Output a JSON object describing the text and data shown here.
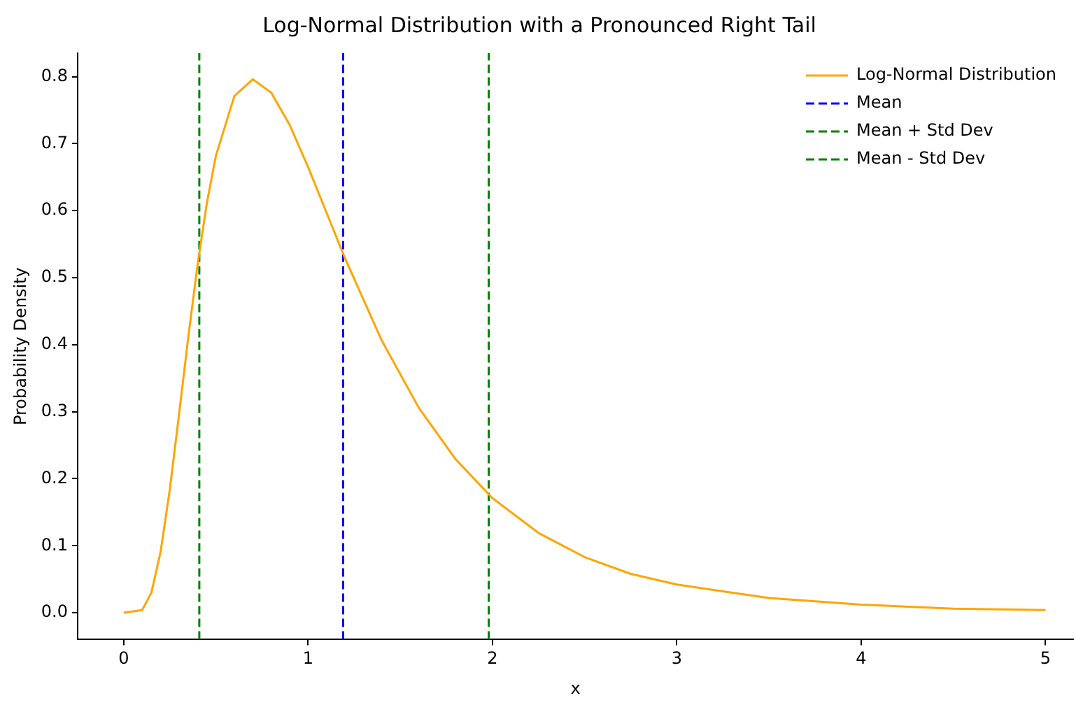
{
  "chart_data": {
    "type": "line",
    "title": "Log-Normal Distribution with a Pronounced Right Tail",
    "xlabel": "x",
    "ylabel": "Probability Density",
    "x": [
      0,
      0.1,
      0.15,
      0.2,
      0.25,
      0.3,
      0.35,
      0.4,
      0.45,
      0.5,
      0.6,
      0.7,
      0.8,
      0.9,
      1.0,
      1.1,
      1.2,
      1.4,
      1.6,
      1.8,
      2.0,
      2.25,
      2.5,
      2.75,
      3.0,
      3.5,
      4.0,
      4.5,
      5.0
    ],
    "series": [
      {
        "name": "Log-Normal Distribution",
        "color": "#ffa500",
        "line_style": "solid",
        "values": [
          0,
          0.004,
          0.03,
          0.091,
          0.184,
          0.296,
          0.411,
          0.518,
          0.61,
          0.682,
          0.771,
          0.796,
          0.776,
          0.728,
          0.665,
          0.597,
          0.529,
          0.406,
          0.306,
          0.229,
          0.171,
          0.119,
          0.083,
          0.058,
          0.042,
          0.022,
          0.012,
          0.006,
          0.004
        ]
      },
      {
        "name": "Mean",
        "color": "#0000ff",
        "line_style": "dashed",
        "x": [
          1.19,
          1.19
        ],
        "values": [
          -0.04,
          0.835
        ]
      },
      {
        "name": "Mean + Std Dev",
        "color": "#008000",
        "line_style": "dashed",
        "x": [
          1.98,
          1.98
        ],
        "values": [
          -0.04,
          0.835
        ]
      },
      {
        "name": "Mean - Std Dev",
        "color": "#008000",
        "line_style": "dashed",
        "x": [
          0.41,
          0.41
        ],
        "values": [
          -0.04,
          0.835
        ]
      }
    ],
    "xlim": [
      -0.25,
      5.15
    ],
    "xticks": [
      0,
      1,
      2,
      3,
      4,
      5
    ],
    "ylim": [
      -0.04,
      0.835
    ],
    "yticks": [
      {
        "value": 0,
        "label": "0.0"
      },
      0.1,
      0.2,
      0.3,
      0.4,
      0.5,
      0.6,
      0.7,
      0.8
    ],
    "grid": false,
    "legend": "top right",
    "marker": "none"
  }
}
